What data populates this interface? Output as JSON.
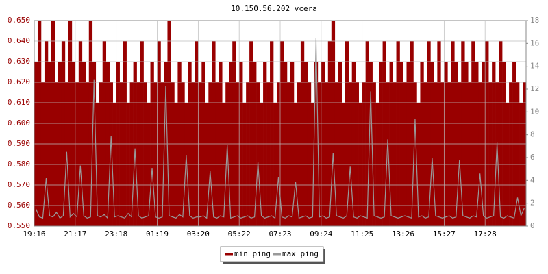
{
  "chart_data": {
    "type": "bar",
    "title": "10.150.56.202 vcera",
    "categories": [
      "19:16",
      null,
      null,
      null,
      null,
      null,
      null,
      null,
      null,
      null,
      null,
      null,
      "21:17",
      null,
      null,
      null,
      null,
      null,
      null,
      null,
      null,
      null,
      null,
      null,
      "23:18",
      null,
      null,
      null,
      null,
      null,
      null,
      null,
      null,
      null,
      null,
      null,
      "01:19",
      null,
      null,
      null,
      null,
      null,
      null,
      null,
      null,
      null,
      null,
      null,
      "03:20",
      null,
      null,
      null,
      null,
      null,
      null,
      null,
      null,
      null,
      null,
      null,
      "05:22",
      null,
      null,
      null,
      null,
      null,
      null,
      null,
      null,
      null,
      null,
      null,
      "07:23",
      null,
      null,
      null,
      null,
      null,
      null,
      null,
      null,
      null,
      null,
      null,
      "09:24",
      null,
      null,
      null,
      null,
      null,
      null,
      null,
      null,
      null,
      null,
      null,
      "11:25",
      null,
      null,
      null,
      null,
      null,
      null,
      null,
      null,
      null,
      null,
      null,
      "13:26",
      null,
      null,
      null,
      null,
      null,
      null,
      null,
      null,
      null,
      null,
      null,
      "15:27",
      null,
      null,
      null,
      null,
      null,
      null,
      null,
      null,
      null,
      null,
      null,
      "17:28",
      null,
      null,
      null,
      null,
      null,
      null,
      null,
      null,
      null,
      null,
      null
    ],
    "series": [
      {
        "name": "min ping",
        "color": "#990000",
        "values": [
          0.63,
          0.65,
          0.62,
          0.64,
          0.63,
          0.65,
          0.62,
          0.63,
          0.64,
          0.62,
          0.65,
          0.63,
          0.62,
          0.64,
          0.63,
          0.62,
          0.65,
          0.63,
          0.61,
          0.62,
          0.64,
          0.63,
          0.62,
          0.61,
          0.63,
          0.62,
          0.64,
          0.61,
          0.62,
          0.63,
          0.62,
          0.64,
          0.62,
          0.61,
          0.63,
          0.62,
          0.64,
          0.62,
          0.63,
          0.65,
          0.62,
          0.61,
          0.63,
          0.62,
          0.61,
          0.63,
          0.62,
          0.64,
          0.62,
          0.63,
          0.61,
          0.62,
          0.64,
          0.62,
          0.63,
          0.61,
          0.62,
          0.63,
          0.64,
          0.62,
          0.63,
          0.61,
          0.62,
          0.64,
          0.63,
          0.62,
          0.61,
          0.63,
          0.62,
          0.64,
          0.61,
          0.62,
          0.64,
          0.63,
          0.62,
          0.63,
          0.61,
          0.62,
          0.64,
          0.63,
          0.62,
          0.61,
          0.63,
          0.62,
          0.63,
          0.62,
          0.64,
          0.65,
          0.62,
          0.63,
          0.61,
          0.64,
          0.62,
          0.63,
          0.62,
          0.61,
          0.62,
          0.64,
          0.63,
          0.62,
          0.61,
          0.63,
          0.64,
          0.62,
          0.63,
          0.62,
          0.64,
          0.63,
          0.62,
          0.63,
          0.64,
          0.62,
          0.61,
          0.63,
          0.62,
          0.64,
          0.63,
          0.62,
          0.64,
          0.62,
          0.63,
          0.62,
          0.64,
          0.63,
          0.62,
          0.64,
          0.63,
          0.62,
          0.64,
          0.63,
          0.62,
          0.63,
          0.64,
          0.62,
          0.63,
          0.62,
          0.64,
          0.63,
          0.61,
          0.62,
          0.63,
          0.62,
          0.61,
          0.62
        ]
      },
      {
        "name": "max ping",
        "color": "#999999",
        "type": "line",
        "axis": "y2",
        "values": [
          1.5,
          0.8,
          0.7,
          4.2,
          0.9,
          0.8,
          1.2,
          0.7,
          0.9,
          6.5,
          0.8,
          1.1,
          0.8,
          5.3,
          0.9,
          0.7,
          0.8,
          12.8,
          0.9,
          0.8,
          1.0,
          0.7,
          7.9,
          0.8,
          0.9,
          0.8,
          0.7,
          1.1,
          0.8,
          6.8,
          0.9,
          0.7,
          0.8,
          0.9,
          5.1,
          0.8,
          0.7,
          0.8,
          12.3,
          0.9,
          0.8,
          0.7,
          1.0,
          0.8,
          6.2,
          0.9,
          0.7,
          0.8,
          0.8,
          0.9,
          0.7,
          4.8,
          0.8,
          0.7,
          0.9,
          0.8,
          7.1,
          0.7,
          0.8,
          0.9,
          0.7,
          0.8,
          0.9,
          0.7,
          0.8,
          5.6,
          0.9,
          0.7,
          0.8,
          0.9,
          0.7,
          4.3,
          0.8,
          0.7,
          0.9,
          0.8,
          3.9,
          0.7,
          0.8,
          0.9,
          0.7,
          0.8,
          16.5,
          0.8,
          0.9,
          0.7,
          0.8,
          6.4,
          0.9,
          0.8,
          0.7,
          0.9,
          5.2,
          0.8,
          0.7,
          0.9,
          0.8,
          0.7,
          11.8,
          0.9,
          0.8,
          0.7,
          0.8,
          7.6,
          0.9,
          0.8,
          0.7,
          0.8,
          0.9,
          0.8,
          0.7,
          9.4,
          0.8,
          0.9,
          0.7,
          0.8,
          6.0,
          0.9,
          0.8,
          0.7,
          0.8,
          0.9,
          0.7,
          0.8,
          5.8,
          0.9,
          0.8,
          0.7,
          0.9,
          0.8,
          4.6,
          0.9,
          0.7,
          0.8,
          0.9,
          7.3,
          0.8,
          0.7,
          0.9,
          0.8,
          0.7,
          2.5,
          0.9,
          1.6
        ]
      }
    ],
    "ylim": [
      0.55,
      0.65
    ],
    "yticks": [
      {
        "value": 0.55,
        "label": "0.550"
      },
      {
        "value": 0.56,
        "label": "0.560"
      },
      {
        "value": 0.57,
        "label": "0.570"
      },
      {
        "value": 0.58,
        "label": "0.580"
      },
      {
        "value": 0.59,
        "label": "0.590"
      },
      {
        "value": 0.6,
        "label": "0.600"
      },
      {
        "value": 0.61,
        "label": "0.610"
      },
      {
        "value": 0.62,
        "label": "0.620"
      },
      {
        "value": 0.63,
        "label": "0.630"
      },
      {
        "value": 0.64,
        "label": "0.640"
      },
      {
        "value": 0.65,
        "label": "0.650"
      }
    ],
    "y2lim": [
      0,
      18
    ],
    "y2ticks": [
      0,
      2,
      4,
      6,
      8,
      10,
      12,
      14,
      16,
      18
    ],
    "grid": true,
    "legend": "bottom"
  }
}
